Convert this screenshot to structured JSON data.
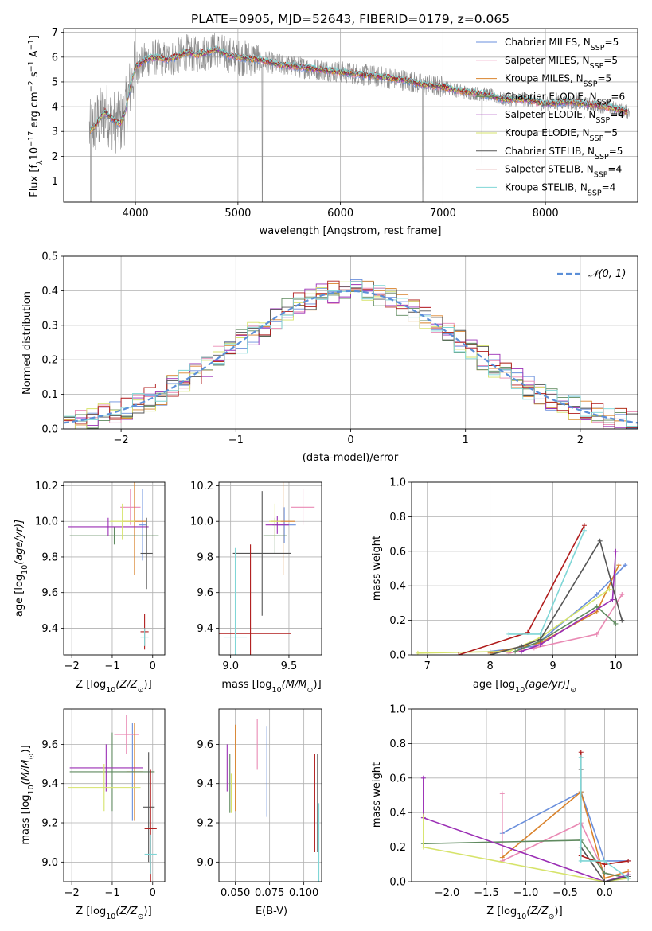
{
  "figure_title": "PLATE=0905, MJD=52643, FIBERID=0179, z=0.065",
  "models": [
    {
      "label": "Chabrier MILES, N",
      "sub": "SSP",
      "n": "=5",
      "color": "#6a8fdc"
    },
    {
      "label": "Salpeter MILES, N",
      "sub": "SSP",
      "n": "=5",
      "color": "#e98ab4"
    },
    {
      "label": "Kroupa MILES, N",
      "sub": "SSP",
      "n": "=5",
      "color": "#d9822b"
    },
    {
      "label": "Chabrier ELODIE, N",
      "sub": "SSP",
      "n": "=6",
      "color": "#5f8a5f"
    },
    {
      "label": "Salpeter ELODIE, N",
      "sub": "SSP",
      "n": "=4",
      "color": "#9b2fb5"
    },
    {
      "label": "Kroupa ELODIE, N",
      "sub": "SSP",
      "n": "=5",
      "color": "#d6e36a"
    },
    {
      "label": "Chabrier STELIB, N",
      "sub": "SSP",
      "n": "=5",
      "color": "#555555"
    },
    {
      "label": "Salpeter STELIB, N",
      "sub": "SSP",
      "n": "=4",
      "color": "#b01c1c"
    },
    {
      "label": "Kroupa STELIB, N",
      "sub": "SSP",
      "n": "=4",
      "color": "#7fd6d6"
    }
  ],
  "chart_data": [
    {
      "id": "spectrum",
      "type": "line",
      "xlabel": "wavelength [Angstrom, rest frame]",
      "ylabel": "Flux [f",
      "ylabel_rest": "10",
      "ylabel_exp": "−17",
      "ylabel_units": " erg cm",
      "xlim": [
        3300,
        8900
      ],
      "ylim": [
        0.15,
        7.15
      ],
      "xticks": [
        "4000",
        "5000",
        "6000",
        "7000",
        "8000"
      ],
      "yticks": [
        "1",
        "2",
        "3",
        "4",
        "5",
        "6",
        "7"
      ],
      "xtick_values": [
        4000,
        5000,
        6000,
        7000,
        8000
      ],
      "ytick_values": [
        1,
        2,
        3,
        4,
        5,
        6,
        7
      ],
      "continuum": {
        "x": [
          3550,
          3600,
          3650,
          3700,
          3750,
          3800,
          3850,
          3900,
          3950,
          4000,
          4100,
          4200,
          4300,
          4400,
          4500,
          4600,
          4700,
          4800,
          4900,
          5000,
          5200,
          5400,
          5600,
          5800,
          6000,
          6200,
          6400,
          6600,
          6800,
          7000,
          7200,
          7400,
          7600,
          7800,
          8000,
          8200,
          8400,
          8600,
          8800
        ],
        "y": [
          3.0,
          3.2,
          3.5,
          3.8,
          3.6,
          3.4,
          3.3,
          3.8,
          4.8,
          5.6,
          5.9,
          6.0,
          5.9,
          6.0,
          6.2,
          6.1,
          6.2,
          6.3,
          6.1,
          6.0,
          5.9,
          5.7,
          5.6,
          5.5,
          5.4,
          5.3,
          5.2,
          5.1,
          4.9,
          4.8,
          4.6,
          4.5,
          4.3,
          4.3,
          4.1,
          4.2,
          4.1,
          4.0,
          3.8
        ]
      }
    },
    {
      "id": "residuals",
      "type": "line",
      "xlabel": "(data-model)/error",
      "ylabel": "Normed distribution",
      "legend": "𝒩(0, 1)",
      "legend_position": "upper right",
      "xlim": [
        -2.5,
        2.5
      ],
      "ylim": [
        0,
        0.5
      ],
      "xticks": [
        "−2",
        "−1",
        "0",
        "1",
        "2"
      ],
      "yticks": [
        "0.0",
        "0.1",
        "0.2",
        "0.3",
        "0.4",
        "0.5"
      ],
      "xtick_values": [
        -2,
        -1,
        0,
        1,
        2
      ],
      "ytick_values": [
        0,
        0.1,
        0.2,
        0.3,
        0.4,
        0.5
      ],
      "grid": true
    },
    {
      "id": "age-vs-z",
      "type": "scatter",
      "xlabel": "Z [log",
      "xlabel_sub": "10",
      "xlabel_rest": "(Z/Z",
      "ylabel": "age  [log",
      "ylabel_sub": "10",
      "ylabel_rest": "(age/yr)]",
      "xlim": [
        -2.2,
        0.3
      ],
      "ylim": [
        9.25,
        10.22
      ],
      "xticks": [
        "−2",
        "−1",
        "0"
      ],
      "yticks": [
        "9.4",
        "9.6",
        "9.8",
        "10.0",
        "10.2"
      ],
      "xtick_values": [
        -2,
        -1,
        0
      ],
      "ytick_values": [
        9.4,
        9.6,
        9.8,
        10.0,
        10.2
      ],
      "points": [
        {
          "x": -0.25,
          "y": 9.98,
          "xerr": 0.1,
          "yerr": 0.2
        },
        {
          "x": -0.55,
          "y": 10.08,
          "xerr": 0.25,
          "yerr": 0.1
        },
        {
          "x": -0.45,
          "y": 10.0,
          "xerr": 0.3,
          "yerr": 0.3
        },
        {
          "x": -0.95,
          "y": 9.92,
          "xerr": 1.1,
          "yerr": 0.05
        },
        {
          "x": -1.1,
          "y": 9.97,
          "xerr": 1.0,
          "yerr": 0.05
        },
        {
          "x": -0.75,
          "y": 10.0,
          "xerr": 0.3,
          "yerr": 0.1
        },
        {
          "x": -0.15,
          "y": 9.82,
          "xerr": 0.15,
          "yerr": 0.2
        },
        {
          "x": -0.2,
          "y": 9.38,
          "xerr": 0.1,
          "yerr": 0.1
        },
        {
          "x": -0.2,
          "y": 9.35,
          "xerr": 0.1,
          "yerr": 0.05
        }
      ]
    },
    {
      "id": "age-vs-mass",
      "type": "scatter",
      "xlabel": "mass [log",
      "xlabel_sub": "10",
      "xlabel_rest": "(M/M",
      "xlim": [
        8.9,
        9.78
      ],
      "ylim": [
        9.25,
        10.22
      ],
      "xticks": [
        "9.0",
        "9.5"
      ],
      "yticks": [
        "9.4",
        "9.6",
        "9.8",
        "10.0",
        "10.2"
      ],
      "xtick_values": [
        9.0,
        9.5
      ],
      "ytick_values": [
        9.4,
        9.6,
        9.8,
        10.0,
        10.2
      ],
      "points": [
        {
          "x": 9.46,
          "y": 9.98,
          "xerr": 0.1,
          "yerr": 0.1
        },
        {
          "x": 9.62,
          "y": 10.08,
          "xerr": 0.1,
          "yerr": 0.1
        },
        {
          "x": 9.45,
          "y": 10.0,
          "xerr": 0.1,
          "yerr": 0.3
        },
        {
          "x": 9.38,
          "y": 9.92,
          "xerr": 0.1,
          "yerr": 0.1
        },
        {
          "x": 9.4,
          "y": 9.98,
          "xerr": 0.1,
          "yerr": 0.05
        },
        {
          "x": 9.38,
          "y": 10.0,
          "xerr": 0.05,
          "yerr": 0.1
        },
        {
          "x": 9.27,
          "y": 9.82,
          "xerr": 0.25,
          "yerr": 0.35
        },
        {
          "x": 9.17,
          "y": 9.37,
          "xerr": 0.35,
          "yerr": 0.5
        },
        {
          "x": 9.04,
          "y": 9.35,
          "xerr": 0.1,
          "yerr": 0.5
        }
      ]
    },
    {
      "id": "mass-weight-vs-age",
      "type": "line",
      "xlabel": "age  [log",
      "xlabel_sub": "10",
      "xlabel_rest": "(age/yr)]",
      "ylabel": "mass weight",
      "xlim": [
        6.75,
        10.35
      ],
      "ylim": [
        0,
        1
      ],
      "xticks": [
        "7",
        "8",
        "9",
        "10"
      ],
      "yticks": [
        "0.0",
        "0.2",
        "0.4",
        "0.6",
        "0.8",
        "1.0"
      ],
      "xtick_values": [
        7,
        8,
        9,
        10
      ],
      "ytick_values": [
        0,
        0.2,
        0.4,
        0.6,
        0.8,
        1.0
      ],
      "series": [
        {
          "x": [
            8.0,
            8.7,
            9.7,
            10.15
          ],
          "y": [
            0.02,
            0.05,
            0.35,
            0.52
          ]
        },
        {
          "x": [
            8.3,
            8.7,
            9.7,
            10.1
          ],
          "y": [
            0.01,
            0.04,
            0.12,
            0.35
          ]
        },
        {
          "x": [
            8.0,
            8.8,
            9.7,
            10.05
          ],
          "y": [
            0.01,
            0.07,
            0.25,
            0.52
          ]
        },
        {
          "x": [
            8.4,
            8.8,
            9.7,
            10.0
          ],
          "y": [
            0.02,
            0.08,
            0.28,
            0.18
          ]
        },
        {
          "x": [
            8.5,
            8.8,
            9.95,
            10.0
          ],
          "y": [
            0.02,
            0.06,
            0.32,
            0.6
          ]
        },
        {
          "x": [
            6.85,
            8.3,
            8.8,
            9.9
          ],
          "y": [
            0.01,
            0.02,
            0.1,
            0.38
          ]
        },
        {
          "x": [
            8.0,
            8.5,
            8.8,
            9.75,
            10.1
          ],
          "y": [
            0.0,
            0.05,
            0.09,
            0.66,
            0.2
          ]
        },
        {
          "x": [
            7.5,
            8.6,
            9.5
          ],
          "y": [
            0.0,
            0.13,
            0.75
          ]
        },
        {
          "x": [
            8.3,
            8.8,
            9.5
          ],
          "y": [
            0.12,
            0.12,
            0.72
          ]
        }
      ]
    },
    {
      "id": "mass-vs-z",
      "type": "scatter",
      "xlabel": "Z [log",
      "xlabel_sub": "10",
      "xlabel_rest": "(Z/Z",
      "ylabel": "mass [log",
      "ylabel_sub": "10",
      "ylabel_rest": "(M/M",
      "xlim": [
        -2.2,
        0.3
      ],
      "ylim": [
        8.9,
        9.78
      ],
      "xticks": [
        "−2",
        "−1",
        "0"
      ],
      "yticks": [
        "9.0",
        "9.2",
        "9.4",
        "9.6"
      ],
      "xtick_values": [
        -2,
        -1,
        0
      ],
      "ytick_values": [
        9.0,
        9.2,
        9.4,
        9.6
      ],
      "points": [
        {
          "x": -0.5,
          "y": 9.46,
          "xerr": 0.05,
          "yerr": 0.25
        },
        {
          "x": -0.65,
          "y": 9.65,
          "xerr": 0.3,
          "yerr": 0.1
        },
        {
          "x": -0.45,
          "y": 9.46,
          "xerr": 0.2,
          "yerr": 0.25
        },
        {
          "x": -1.0,
          "y": 9.46,
          "xerr": 1.05,
          "yerr": 0.2
        },
        {
          "x": -1.15,
          "y": 9.48,
          "xerr": 0.9,
          "yerr": 0.12
        },
        {
          "x": -1.2,
          "y": 9.38,
          "xerr": 0.9,
          "yerr": 0.12
        },
        {
          "x": -0.1,
          "y": 9.28,
          "xerr": 0.15,
          "yerr": 0.28
        },
        {
          "x": -0.05,
          "y": 9.17,
          "xerr": 0.15,
          "yerr": 0.3
        },
        {
          "x": -0.05,
          "y": 9.04,
          "xerr": 0.15,
          "yerr": 0.1
        }
      ]
    },
    {
      "id": "mass-vs-ebv",
      "type": "scatter",
      "xlabel": "E(B-V)",
      "xlim": [
        0.038,
        0.113
      ],
      "ylim": [
        8.9,
        9.78
      ],
      "xticks": [
        "0.050",
        "0.075",
        "0.100"
      ],
      "yticks": [
        "9.0",
        "9.2",
        "9.4",
        "9.6"
      ],
      "xtick_values": [
        0.05,
        0.075,
        0.1
      ],
      "ytick_values": [
        9.0,
        9.2,
        9.4,
        9.6
      ],
      "points": [
        {
          "x": 0.073,
          "y": 9.46,
          "xerr": 0,
          "yerr": 0.23
        },
        {
          "x": 0.066,
          "y": 9.6,
          "xerr": 0,
          "yerr": 0.13
        },
        {
          "x": 0.05,
          "y": 9.48,
          "xerr": 0,
          "yerr": 0.22
        },
        {
          "x": 0.046,
          "y": 9.4,
          "xerr": 0,
          "yerr": 0.15
        },
        {
          "x": 0.044,
          "y": 9.48,
          "xerr": 0,
          "yerr": 0.12
        },
        {
          "x": 0.047,
          "y": 9.35,
          "xerr": 0,
          "yerr": 0.1
        },
        {
          "x": 0.11,
          "y": 9.3,
          "xerr": 0,
          "yerr": 0.25
        },
        {
          "x": 0.108,
          "y": 9.3,
          "xerr": 0,
          "yerr": 0.25
        },
        {
          "x": 0.111,
          "y": 9.1,
          "xerr": 0,
          "yerr": 0.2
        }
      ]
    },
    {
      "id": "mass-weight-vs-z",
      "type": "line",
      "xlabel": "Z [log",
      "xlabel_sub": "10",
      "xlabel_rest": "(Z/Z",
      "ylabel": "mass weight",
      "xlim": [
        -2.45,
        0.42
      ],
      "ylim": [
        0,
        1
      ],
      "xticks": [
        "−2.0",
        "−1.5",
        "−1.0",
        "−0.5",
        "0.0"
      ],
      "yticks": [
        "0.0",
        "0.2",
        "0.4",
        "0.6",
        "0.8",
        "1.0"
      ],
      "xtick_values": [
        -2.0,
        -1.5,
        -1.0,
        -0.5,
        0.0
      ],
      "ytick_values": [
        0,
        0.2,
        0.4,
        0.6,
        0.8,
        1.0
      ],
      "series": [
        {
          "x": [
            -1.3,
            -0.3,
            0.0,
            0.3
          ],
          "y": [
            0.28,
            0.52,
            0.12,
            0.12
          ]
        },
        {
          "x": [
            -1.3,
            -1.3,
            -0.3,
            0.0,
            0.3
          ],
          "y": [
            0.51,
            0.12,
            0.34,
            0.05,
            0.02
          ]
        },
        {
          "x": [
            -1.3,
            -0.3,
            0.0,
            0.3
          ],
          "y": [
            0.14,
            0.52,
            0.02,
            0.06
          ]
        },
        {
          "x": [
            -2.3,
            -0.3,
            0.0,
            0.3
          ],
          "y": [
            0.22,
            0.24,
            0.05,
            0.02
          ]
        },
        {
          "x": [
            -2.3,
            -2.3,
            0.0,
            0.3
          ],
          "y": [
            0.6,
            0.37,
            0.0,
            0.04
          ]
        },
        {
          "x": [
            -2.3,
            -2.3,
            0.0,
            0.3
          ],
          "y": [
            0.38,
            0.2,
            0.0,
            0.02
          ]
        },
        {
          "x": [
            -0.3,
            -0.3,
            0.0,
            0.3
          ],
          "y": [
            0.65,
            0.2,
            0.0,
            0.03
          ]
        },
        {
          "x": [
            -0.3,
            -0.3,
            0.0,
            0.3
          ],
          "y": [
            0.75,
            0.15,
            0.1,
            0.12
          ]
        },
        {
          "x": [
            -0.3,
            -0.3,
            0.0,
            0.3
          ],
          "y": [
            0.72,
            0.12,
            0.12,
            0.02
          ]
        }
      ]
    }
  ]
}
